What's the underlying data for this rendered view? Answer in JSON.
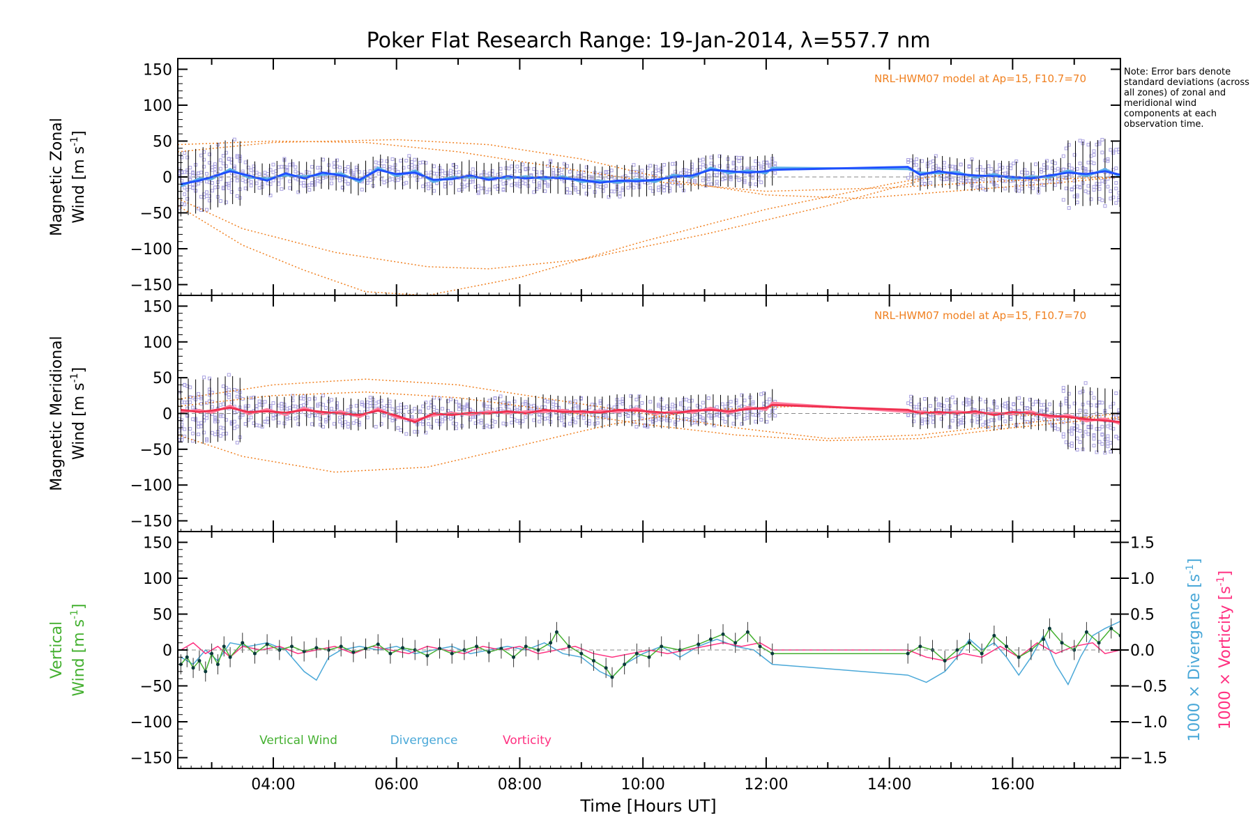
{
  "title": "Poker Flat Research Range: 19-Jan-2014, λ=557.7 nm",
  "note": "Note: Error bars denote standard deviations (across all zones) of zonal and meridional wind components at each observation time.",
  "colors": {
    "zonal": "#1f4fff",
    "zonal_light": "#5aaee8",
    "meridional": "#f03050",
    "meridional_light": "#ff7f9f",
    "model": "#f08020",
    "scatter": "#a8a0e0",
    "vertical": "#44b030",
    "divergence": "#4aa8d8",
    "vorticity": "#ff3080",
    "errorbar": "#000000",
    "axis": "#000000"
  },
  "chart_data": [
    {
      "type": "line",
      "panel": "zonal",
      "ylabel_line1": "Magnetic Zonal",
      "ylabel_line2": "Wind [m s",
      "ylabel_sup": "-1",
      "ylabel_close": "]",
      "model_label": "NRL-HWM07 model at Ap=15, F10.7=70",
      "ylim": [
        -165,
        165
      ],
      "xlim": [
        2.45,
        17.75
      ],
      "yticks": [
        150,
        100,
        50,
        0,
        -50,
        -100,
        -150
      ],
      "ytick_labels": [
        "150",
        "100",
        "50",
        "0",
        "−50",
        "−100",
        "−150"
      ],
      "series": [
        {
          "role": "mean",
          "x": [
            2.5,
            2.8,
            3.0,
            3.3,
            3.6,
            3.9,
            4.2,
            4.5,
            4.8,
            5.1,
            5.4,
            5.7,
            6.0,
            6.3,
            6.6,
            6.9,
            7.2,
            7.5,
            7.8,
            8.1,
            8.4,
            8.7,
            9.0,
            9.3,
            9.6,
            9.9,
            10.2,
            10.5,
            10.8,
            11.1,
            11.4,
            11.7,
            12.0,
            12.1,
            14.3,
            14.5,
            14.8,
            15.1,
            15.4,
            15.7,
            16.0,
            16.3,
            16.6,
            16.9,
            17.2,
            17.5,
            17.75
          ],
          "y": [
            -10,
            -5,
            0,
            8,
            2,
            -5,
            5,
            -2,
            6,
            2,
            -4,
            10,
            4,
            6,
            -4,
            -3,
            2,
            -4,
            1,
            -2,
            0,
            -2,
            -4,
            -8,
            -5,
            -6,
            -4,
            0,
            2,
            10,
            8,
            6,
            8,
            10,
            14,
            3,
            8,
            4,
            2,
            1,
            0,
            -2,
            2,
            6,
            4,
            8,
            3
          ]
        }
      ],
      "model_curves": [
        {
          "x": [
            2.45,
            3.5,
            5.0,
            6.5,
            7.5,
            9.0,
            11.0,
            13.0,
            14.5
          ],
          "y": [
            -30,
            -72,
            -105,
            -125,
            -128,
            -115,
            -80,
            -40,
            -5
          ]
        },
        {
          "x": [
            2.45,
            3.5,
            4.5,
            5.5,
            6.5,
            8.0,
            10.0,
            12.0,
            14.0,
            15.0
          ],
          "y": [
            -40,
            -95,
            -130,
            -160,
            -165,
            -140,
            -90,
            -45,
            -10,
            5
          ]
        },
        {
          "x": [
            2.45,
            4.0,
            5.5,
            7.0,
            8.5,
            10.0,
            12.0,
            14.0,
            16.0,
            17.75
          ],
          "y": [
            45,
            50,
            48,
            35,
            15,
            -5,
            -20,
            -15,
            -5,
            0
          ]
        },
        {
          "x": [
            2.45,
            4.0,
            6.0,
            7.5,
            9.0,
            10.5,
            12.0,
            13.5,
            15.0,
            16.5,
            17.75
          ],
          "y": [
            35,
            48,
            52,
            45,
            25,
            -5,
            -25,
            -30,
            -20,
            -10,
            0
          ]
        }
      ]
    },
    {
      "type": "line",
      "panel": "meridional",
      "ylabel_line1": "Magnetic Meridional",
      "ylabel_line2": "Wind [m s",
      "ylabel_sup": "-1",
      "ylabel_close": "]",
      "model_label": "NRL-HWM07 model at Ap=15, F10.7=70",
      "ylim": [
        -165,
        165
      ],
      "xlim": [
        2.45,
        17.75
      ],
      "yticks": [
        150,
        100,
        50,
        0,
        -50,
        -100,
        -150
      ],
      "ytick_labels": [
        "150",
        "100",
        "50",
        "0",
        "−50",
        "−100",
        "−150"
      ],
      "series": [
        {
          "role": "mean",
          "x": [
            2.5,
            2.8,
            3.0,
            3.3,
            3.6,
            3.9,
            4.2,
            4.5,
            4.8,
            5.1,
            5.4,
            5.7,
            6.0,
            6.3,
            6.6,
            6.9,
            7.2,
            7.5,
            7.8,
            8.1,
            8.4,
            8.7,
            9.0,
            9.3,
            9.6,
            9.9,
            10.2,
            10.5,
            10.8,
            11.1,
            11.4,
            11.7,
            12.0,
            12.1,
            14.3,
            14.5,
            14.8,
            15.1,
            15.4,
            15.7,
            16.0,
            16.3,
            16.6,
            16.9,
            17.2,
            17.5,
            17.75
          ],
          "y": [
            5,
            2,
            4,
            8,
            2,
            3,
            1,
            5,
            2,
            0,
            -2,
            4,
            -3,
            -12,
            0,
            -2,
            1,
            0,
            3,
            0,
            5,
            2,
            3,
            1,
            5,
            4,
            2,
            0,
            4,
            5,
            3,
            6,
            8,
            12,
            5,
            0,
            2,
            0,
            3,
            -2,
            2,
            0,
            -3,
            -5,
            -8,
            -10,
            -12
          ]
        }
      ],
      "model_curves": [
        {
          "x": [
            2.45,
            3.5,
            5.0,
            6.5,
            8.0,
            9.5,
            11.0,
            12.5,
            14.0,
            15.5,
            17.0,
            17.75
          ],
          "y": [
            -30,
            -60,
            -82,
            -75,
            -45,
            -15,
            5,
            10,
            5,
            0,
            -5,
            -8
          ]
        },
        {
          "x": [
            2.45,
            4.0,
            5.5,
            7.0,
            8.5,
            10.0,
            11.5,
            13.0,
            14.5,
            16.0,
            17.75
          ],
          "y": [
            20,
            40,
            48,
            40,
            20,
            0,
            -20,
            -35,
            -30,
            -15,
            0
          ]
        },
        {
          "x": [
            2.45,
            4.0,
            5.5,
            7.0,
            8.5,
            10.0,
            11.5,
            13.0,
            14.5,
            16.0,
            17.75
          ],
          "y": [
            10,
            25,
            30,
            22,
            5,
            -15,
            -30,
            -38,
            -35,
            -20,
            -5
          ]
        }
      ]
    },
    {
      "type": "line",
      "panel": "vertical",
      "ylabel_line1": "Vertical",
      "ylabel_line2": "Wind [m s",
      "ylabel_sup": "-1",
      "ylabel_close": "]",
      "y2label_a": "1000 × Divergence [s",
      "y2label_b": "1000 × Vorticity [s",
      "y2label_sup": "-1",
      "y2label_close": "]",
      "xlabel": "Time [Hours UT]",
      "xticks": [
        4,
        6,
        8,
        10,
        12,
        14,
        16
      ],
      "xtick_labels": [
        "04:00",
        "06:00",
        "08:00",
        "10:00",
        "12:00",
        "14:00",
        "16:00"
      ],
      "ylim": [
        -165,
        165
      ],
      "y2lim": [
        -1.65,
        1.65
      ],
      "xlim": [
        2.45,
        17.75
      ],
      "yticks": [
        150,
        100,
        50,
        0,
        -50,
        -100,
        -150
      ],
      "ytick_labels": [
        "150",
        "100",
        "50",
        "0",
        "−50",
        "−100",
        "−150"
      ],
      "y2ticks": [
        1.5,
        1.0,
        0.5,
        0.0,
        -0.5,
        -1.0,
        -1.5
      ],
      "y2tick_labels": [
        "1.5",
        "1.0",
        "0.5",
        "0.0",
        "−0.5",
        "−1.0",
        "−1.5"
      ],
      "legend": [
        "Vertical Wind",
        "Divergence",
        "Vorticity"
      ],
      "series": [
        {
          "name": "Vertical Wind",
          "axis": "left",
          "x": [
            2.5,
            2.6,
            2.7,
            2.8,
            2.9,
            3.0,
            3.1,
            3.2,
            3.3,
            3.5,
            3.7,
            3.9,
            4.1,
            4.3,
            4.5,
            4.7,
            4.9,
            5.1,
            5.3,
            5.5,
            5.7,
            5.9,
            6.1,
            6.3,
            6.5,
            6.7,
            6.9,
            7.1,
            7.3,
            7.5,
            7.7,
            7.9,
            8.1,
            8.3,
            8.5,
            8.6,
            8.8,
            9.0,
            9.2,
            9.4,
            9.5,
            9.7,
            9.9,
            10.1,
            10.3,
            10.6,
            10.9,
            11.1,
            11.3,
            11.5,
            11.7,
            11.9,
            12.1,
            14.3,
            14.5,
            14.7,
            14.9,
            15.1,
            15.3,
            15.5,
            15.7,
            15.9,
            16.1,
            16.3,
            16.5,
            16.6,
            16.8,
            17.0,
            17.2,
            17.4,
            17.6,
            17.75
          ],
          "y": [
            -20,
            -10,
            -25,
            -15,
            -30,
            -5,
            -20,
            5,
            -10,
            10,
            -5,
            8,
            0,
            5,
            -2,
            3,
            0,
            5,
            -3,
            2,
            8,
            -5,
            3,
            0,
            -8,
            2,
            -5,
            0,
            5,
            -3,
            2,
            -10,
            5,
            0,
            10,
            25,
            5,
            -5,
            -15,
            -25,
            -38,
            -20,
            -5,
            -10,
            5,
            0,
            8,
            15,
            22,
            10,
            25,
            5,
            -5,
            -5,
            5,
            0,
            -15,
            0,
            10,
            -5,
            20,
            5,
            -10,
            0,
            15,
            30,
            10,
            0,
            25,
            10,
            30,
            20
          ]
        },
        {
          "name": "Divergence",
          "axis": "right",
          "x": [
            2.5,
            2.7,
            2.9,
            3.1,
            3.3,
            3.6,
            3.9,
            4.2,
            4.5,
            4.7,
            4.9,
            5.1,
            5.4,
            5.7,
            6.0,
            6.3,
            6.6,
            6.9,
            7.2,
            7.5,
            7.8,
            8.1,
            8.4,
            8.7,
            9.0,
            9.3,
            9.5,
            9.7,
            10.0,
            10.3,
            10.6,
            10.9,
            11.2,
            11.5,
            11.8,
            12.1,
            14.3,
            14.6,
            14.9,
            15.1,
            15.3,
            15.5,
            15.7,
            15.9,
            16.1,
            16.3,
            16.5,
            16.7,
            16.9,
            17.1,
            17.3,
            17.5,
            17.75
          ],
          "y": [
            -0.1,
            -0.2,
            0.0,
            -0.15,
            0.1,
            0.05,
            0.1,
            0.0,
            -0.3,
            -0.42,
            -0.1,
            0.0,
            0.05,
            0.0,
            0.05,
            -0.05,
            0.0,
            0.05,
            -0.05,
            0.0,
            0.05,
            0.0,
            0.1,
            -0.05,
            -0.1,
            -0.3,
            -0.38,
            -0.2,
            -0.05,
            0.05,
            -0.1,
            0.05,
            0.15,
            0.05,
            0.0,
            -0.2,
            -0.35,
            -0.45,
            -0.3,
            -0.1,
            0.15,
            0.0,
            0.1,
            -0.1,
            -0.35,
            -0.1,
            0.2,
            -0.2,
            -0.48,
            -0.1,
            0.2,
            0.3,
            0.4
          ]
        },
        {
          "name": "Vorticity",
          "axis": "right",
          "x": [
            2.5,
            2.7,
            2.9,
            3.1,
            3.3,
            3.5,
            3.8,
            4.1,
            4.4,
            4.7,
            5.0,
            5.3,
            5.6,
            5.9,
            6.2,
            6.5,
            6.8,
            7.1,
            7.4,
            7.7,
            8.0,
            8.3,
            8.6,
            8.9,
            9.2,
            9.5,
            9.8,
            10.1,
            10.4,
            10.7,
            11.0,
            11.3,
            11.6,
            11.9,
            12.1,
            14.3,
            14.6,
            14.9,
            15.2,
            15.5,
            15.8,
            16.1,
            16.4,
            16.7,
            17.0,
            17.3,
            17.5,
            17.75
          ],
          "y": [
            0.0,
            0.1,
            -0.05,
            0.05,
            -0.1,
            0.05,
            0.0,
            0.05,
            -0.05,
            0.0,
            0.05,
            -0.05,
            0.05,
            0.0,
            -0.05,
            0.05,
            0.0,
            -0.05,
            0.05,
            0.0,
            0.05,
            -0.05,
            0.0,
            0.05,
            -0.05,
            -0.1,
            -0.05,
            0.0,
            -0.05,
            0.0,
            0.05,
            0.1,
            0.05,
            0.1,
            0.0,
            0.0,
            -0.1,
            -0.15,
            -0.05,
            -0.1,
            0.05,
            -0.1,
            0.1,
            -0.05,
            0.05,
            0.1,
            -0.05,
            0.0
          ]
        }
      ]
    }
  ]
}
